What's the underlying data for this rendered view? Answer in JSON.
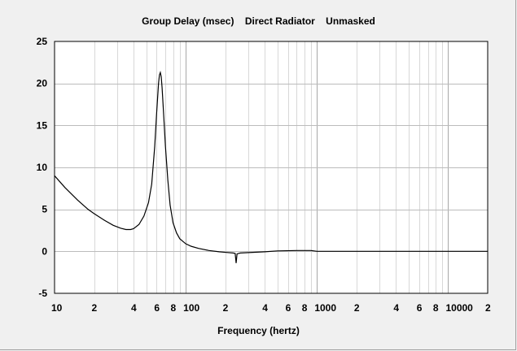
{
  "chart_data": {
    "type": "line",
    "title": "Group Delay (msec)    Direct Radiator    Unmasked",
    "xlabel": "Frequency (hertz)",
    "ylabel": "",
    "x_scale": "log",
    "xlim": [
      10,
      20000
    ],
    "ylim": [
      -5,
      25
    ],
    "grid": true,
    "y_ticks": [
      25,
      20,
      15,
      10,
      5,
      0,
      -5
    ],
    "x_ticks": [
      {
        "value": 10,
        "label": "10"
      },
      {
        "value": 20,
        "label": "2"
      },
      {
        "value": 40,
        "label": "4"
      },
      {
        "value": 60,
        "label": "6"
      },
      {
        "value": 80,
        "label": "8"
      },
      {
        "value": 100,
        "label": "100"
      },
      {
        "value": 200,
        "label": "2"
      },
      {
        "value": 400,
        "label": "4"
      },
      {
        "value": 600,
        "label": "6"
      },
      {
        "value": 800,
        "label": "8"
      },
      {
        "value": 1000,
        "label": "1000"
      },
      {
        "value": 2000,
        "label": "2"
      },
      {
        "value": 4000,
        "label": "4"
      },
      {
        "value": 6000,
        "label": "6"
      },
      {
        "value": 8000,
        "label": "8"
      },
      {
        "value": 10000,
        "label": "10000"
      },
      {
        "value": 20000,
        "label": "2"
      }
    ],
    "series": [
      {
        "color": "#000000",
        "points": [
          [
            10,
            9.0
          ],
          [
            12,
            7.6
          ],
          [
            15,
            6.1
          ],
          [
            18,
            5.0
          ],
          [
            20,
            4.5
          ],
          [
            24,
            3.7
          ],
          [
            28,
            3.1
          ],
          [
            32,
            2.75
          ],
          [
            35,
            2.6
          ],
          [
            38,
            2.6
          ],
          [
            40,
            2.7
          ],
          [
            44,
            3.2
          ],
          [
            48,
            4.2
          ],
          [
            52,
            5.8
          ],
          [
            55,
            8.0
          ],
          [
            58,
            12.5
          ],
          [
            60,
            16.5
          ],
          [
            62,
            20.0
          ],
          [
            63,
            21.0
          ],
          [
            64,
            21.3
          ],
          [
            65,
            20.8
          ],
          [
            66,
            19.5
          ],
          [
            68,
            16.0
          ],
          [
            70,
            12.5
          ],
          [
            73,
            8.5
          ],
          [
            76,
            5.5
          ],
          [
            80,
            3.4
          ],
          [
            85,
            2.2
          ],
          [
            90,
            1.5
          ],
          [
            100,
            0.9
          ],
          [
            110,
            0.6
          ],
          [
            125,
            0.35
          ],
          [
            150,
            0.1
          ],
          [
            180,
            -0.05
          ],
          [
            200,
            -0.12
          ],
          [
            230,
            -0.2
          ],
          [
            238,
            -0.25
          ],
          [
            242,
            -1.4
          ],
          [
            246,
            -0.3
          ],
          [
            260,
            -0.2
          ],
          [
            300,
            -0.15
          ],
          [
            400,
            -0.05
          ],
          [
            500,
            0.05
          ],
          [
            700,
            0.1
          ],
          [
            900,
            0.1
          ],
          [
            1000,
            0.0
          ],
          [
            2000,
            0.0
          ],
          [
            5000,
            0.0
          ],
          [
            10000,
            0.0
          ],
          [
            20000,
            0.0
          ]
        ]
      }
    ]
  }
}
